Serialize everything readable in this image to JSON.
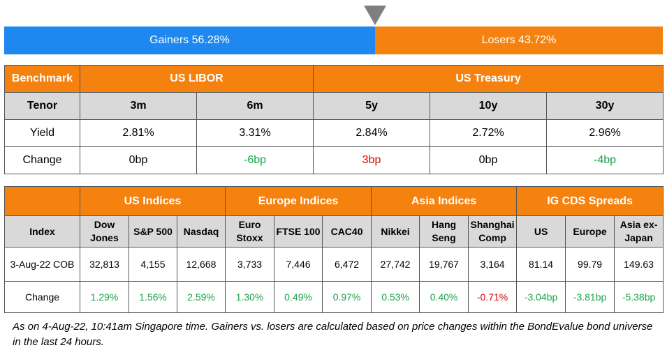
{
  "summary": {
    "gainers_label": "Gainers 56.28%",
    "losers_label": "Losers 43.72%",
    "gainers_share": 0.5628,
    "losers_share": 0.4372,
    "colors": {
      "gainers": "#1e88f0",
      "losers": "#f5820f",
      "positive": "#1aa34a",
      "negative": "#e00000"
    }
  },
  "rates": {
    "benchmark_label": "Benchmark",
    "libor_label": "US LIBOR",
    "treasury_label": "US Treasury",
    "tenor_label": "Tenor",
    "yield_label": "Yield",
    "change_label": "Change",
    "tenors": [
      "3m",
      "6m",
      "5y",
      "10y",
      "30y"
    ],
    "yields": [
      "2.81%",
      "3.31%",
      "2.84%",
      "2.72%",
      "2.96%"
    ],
    "changes": [
      "0bp",
      "-6bp",
      "3bp",
      "0bp",
      "-4bp"
    ]
  },
  "indices": {
    "groups": [
      "US Indices",
      "Europe Indices",
      "Asia Indices",
      "IG CDS Spreads"
    ],
    "index_label": "Index",
    "date_label": "3-Aug-22 COB",
    "change_label": "Change",
    "names": [
      [
        "Dow",
        "Jones"
      ],
      [
        "S&P 500"
      ],
      [
        "Nasdaq"
      ],
      [
        "Euro",
        "Stoxx"
      ],
      [
        "FTSE 100"
      ],
      [
        "CAC40"
      ],
      [
        "Nikkei"
      ],
      [
        "Hang",
        "Seng"
      ],
      [
        "Shanghai",
        "Comp"
      ],
      [
        "US"
      ],
      [
        "Europe"
      ],
      [
        "Asia ex-",
        "Japan"
      ]
    ],
    "values": [
      "32,813",
      "4,155",
      "12,668",
      "3,733",
      "7,446",
      "6,472",
      "27,742",
      "19,767",
      "3,164",
      "81.14",
      "99.79",
      "149.63"
    ],
    "changes": [
      "1.29%",
      "1.56%",
      "2.59%",
      "1.30%",
      "0.49%",
      "0.97%",
      "0.53%",
      "0.40%",
      "-0.71%",
      "-3.04bp",
      "-3.81bp",
      "-5.38bp"
    ],
    "change_colors": [
      "pos",
      "pos",
      "pos",
      "pos",
      "pos",
      "pos",
      "pos",
      "pos",
      "neg",
      "pos",
      "pos",
      "pos"
    ]
  },
  "footnote": "As on 4-Aug-22, 10:41am Singapore time. Gainers vs. losers are calculated based on price changes within the BondEvalue bond universe in the last 24 hours."
}
